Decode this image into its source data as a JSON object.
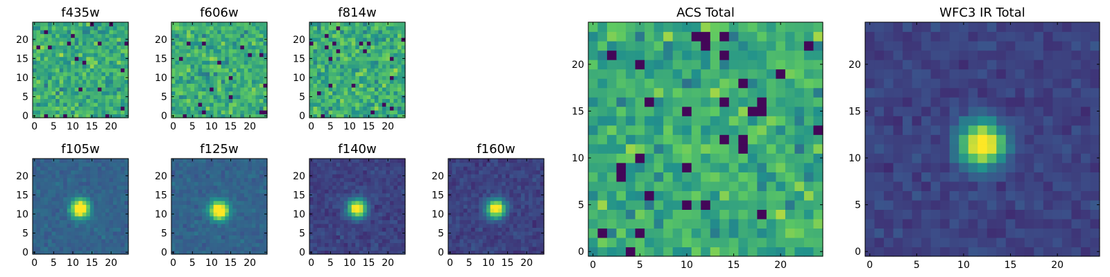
{
  "chart_data": [
    {
      "type": "heatmap",
      "title": "f435w",
      "pattern": "noise",
      "xticks": [
        "0",
        "5",
        "10",
        "15",
        "20"
      ],
      "yticks": [
        "0",
        "5",
        "10",
        "15",
        "20"
      ],
      "xlim": [
        -0.5,
        24.5
      ],
      "ylim": [
        -0.5,
        24.5
      ]
    },
    {
      "type": "heatmap",
      "title": "f606w",
      "pattern": "noise",
      "xticks": [
        "0",
        "5",
        "10",
        "15",
        "20"
      ],
      "yticks": [
        "0",
        "5",
        "10",
        "15",
        "20"
      ],
      "xlim": [
        -0.5,
        24.5
      ],
      "ylim": [
        -0.5,
        24.5
      ]
    },
    {
      "type": "heatmap",
      "title": "f814w",
      "pattern": "noise",
      "xticks": [
        "0",
        "5",
        "10",
        "15",
        "20"
      ],
      "yticks": [
        "0",
        "5",
        "10",
        "15",
        "20"
      ],
      "xlim": [
        -0.5,
        24.5
      ],
      "ylim": [
        -0.5,
        24.5
      ]
    },
    {
      "type": "heatmap",
      "title": "f105w",
      "pattern": "source",
      "source_center": [
        12,
        11.5
      ],
      "xticks": [
        "0",
        "5",
        "10",
        "15",
        "20"
      ],
      "yticks": [
        "0",
        "5",
        "10",
        "15",
        "20"
      ],
      "xlim": [
        -0.5,
        24.5
      ],
      "ylim": [
        -0.5,
        24.5
      ]
    },
    {
      "type": "heatmap",
      "title": "f125w",
      "pattern": "source",
      "source_center": [
        12,
        11
      ],
      "xticks": [
        "0",
        "5",
        "10",
        "15",
        "20"
      ],
      "yticks": [
        "0",
        "5",
        "10",
        "15",
        "20"
      ],
      "xlim": [
        -0.5,
        24.5
      ],
      "ylim": [
        -0.5,
        24.5
      ]
    },
    {
      "type": "heatmap",
      "title": "f140w",
      "pattern": "source",
      "source_center": [
        12,
        11.5
      ],
      "xticks": [
        "0",
        "5",
        "10",
        "15",
        "20"
      ],
      "yticks": [
        "0",
        "5",
        "10",
        "15",
        "20"
      ],
      "xlim": [
        -0.5,
        24.5
      ],
      "ylim": [
        -0.5,
        24.5
      ]
    },
    {
      "type": "heatmap",
      "title": "f160w",
      "pattern": "source",
      "source_center": [
        12,
        11.5
      ],
      "xticks": [
        "0",
        "5",
        "10",
        "15",
        "20"
      ],
      "yticks": [
        "0",
        "5",
        "10",
        "15",
        "20"
      ],
      "xlim": [
        -0.5,
        24.5
      ],
      "ylim": [
        -0.5,
        24.5
      ]
    },
    {
      "type": "heatmap",
      "title": "ACS Total",
      "pattern": "noise",
      "xticks": [
        "0",
        "5",
        "10",
        "15",
        "20"
      ],
      "yticks": [
        "0",
        "5",
        "10",
        "15",
        "20"
      ],
      "xlim": [
        -0.5,
        24.5
      ],
      "ylim": [
        -0.5,
        24.5
      ]
    },
    {
      "type": "heatmap",
      "title": "WFC3 IR Total",
      "pattern": "source",
      "source_center": [
        12,
        11.5
      ],
      "xticks": [
        "0",
        "5",
        "10",
        "15",
        "20"
      ],
      "yticks": [
        "0",
        "5",
        "10",
        "15",
        "20"
      ],
      "xlim": [
        -0.5,
        24.5
      ],
      "ylim": [
        -0.5,
        24.5
      ]
    }
  ],
  "colormap": [
    "#440154",
    "#3b528b",
    "#21918c",
    "#5ec962",
    "#fde725"
  ]
}
